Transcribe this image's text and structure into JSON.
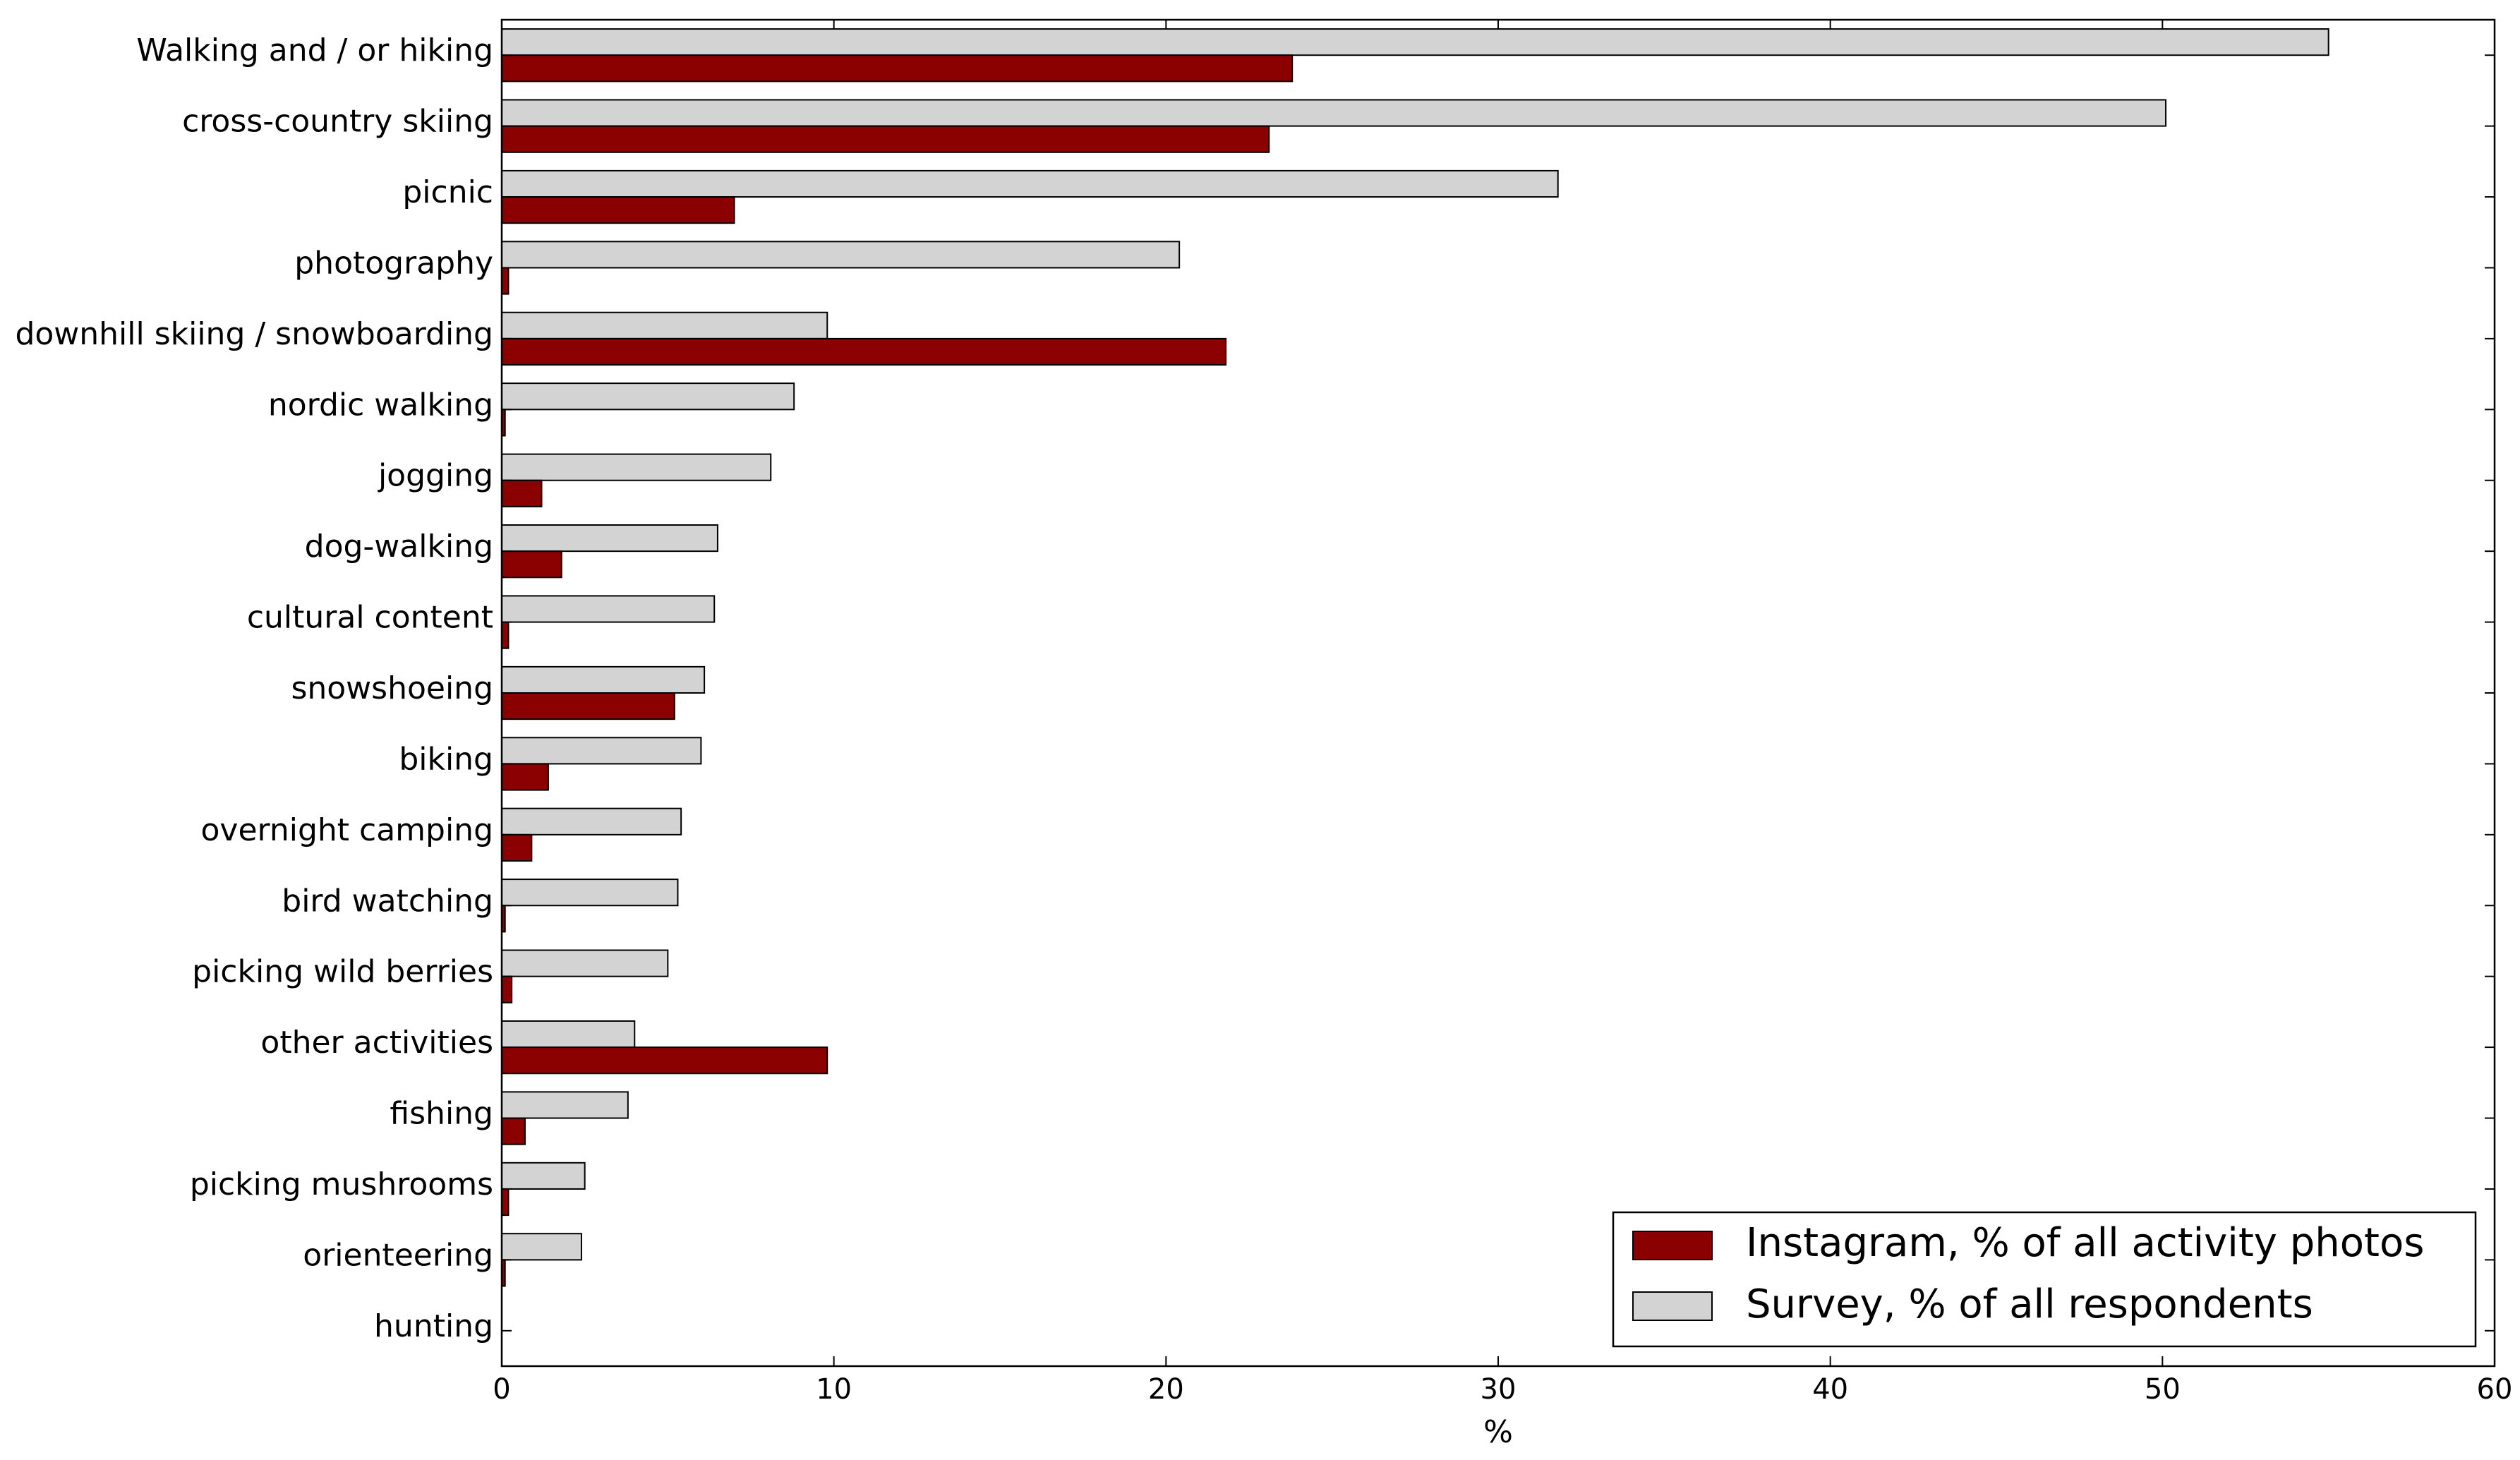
{
  "chart_data": {
    "type": "bar",
    "orientation": "horizontal",
    "categories": [
      "Walking and / or hiking",
      "cross-country skiing",
      "picnic",
      "photography",
      "downhill skiing / snowboarding",
      "nordic walking",
      "jogging",
      "dog-walking",
      "cultural content",
      "snowshoeing",
      "biking",
      "overnight camping",
      "bird watching",
      "picking wild berries",
      "other activities",
      "fishing",
      "picking mushrooms",
      "orienteering",
      "hunting"
    ],
    "series": [
      {
        "name": "Survey, % of all respondents",
        "color": "#d3d3d3",
        "values": [
          55.0,
          50.1,
          31.8,
          20.4,
          9.8,
          8.8,
          8.1,
          6.5,
          6.4,
          6.1,
          6.0,
          5.4,
          5.3,
          5.0,
          4.0,
          3.8,
          2.5,
          2.4,
          0.0
        ]
      },
      {
        "name": "Instagram, % of all activity photos",
        "color": "#8b0000",
        "values": [
          23.8,
          23.1,
          7.0,
          0.2,
          21.8,
          0.1,
          1.2,
          1.8,
          0.2,
          5.2,
          1.4,
          0.9,
          0.1,
          0.3,
          9.8,
          0.7,
          0.2,
          0.1,
          0.0
        ]
      }
    ],
    "xlabel": "%",
    "ylabel": "",
    "xlim": [
      0,
      60
    ],
    "xticks": [
      0,
      10,
      20,
      30,
      40,
      50,
      60
    ],
    "grid": false,
    "legend": {
      "placement": "lower-right",
      "entries": [
        "Instagram, % of all activity photos",
        "Survey, % of all respondents"
      ]
    }
  }
}
